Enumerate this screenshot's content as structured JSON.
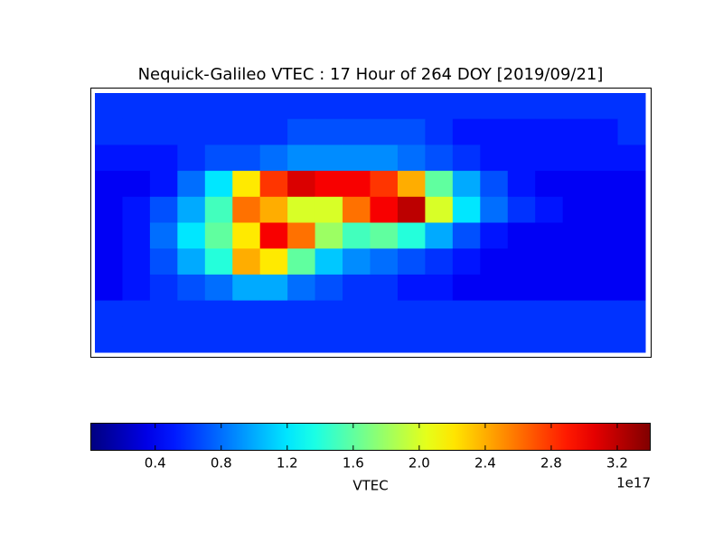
{
  "chart_data": {
    "type": "heatmap",
    "title": "Nequick-Galileo VTEC : 17 Hour of 264 DOY [2019/09/21]",
    "colormap": "jet",
    "xlim": [
      -180,
      180
    ],
    "ylim": [
      90,
      -90
    ],
    "values": [
      [
        0.6,
        0.6,
        0.6,
        0.6,
        0.6,
        0.6,
        0.6,
        0.6,
        0.6,
        0.6,
        0.6,
        0.6,
        0.6,
        0.6,
        0.6,
        0.6,
        0.6,
        0.6,
        0.6,
        0.6
      ],
      [
        0.6,
        0.6,
        0.6,
        0.6,
        0.6,
        0.6,
        0.6,
        0.7,
        0.7,
        0.7,
        0.7,
        0.7,
        0.6,
        0.5,
        0.5,
        0.5,
        0.5,
        0.5,
        0.5,
        0.6
      ],
      [
        0.5,
        0.5,
        0.5,
        0.6,
        0.7,
        0.7,
        0.8,
        0.9,
        0.9,
        0.9,
        0.9,
        0.8,
        0.7,
        0.6,
        0.5,
        0.5,
        0.5,
        0.5,
        0.5,
        0.5
      ],
      [
        0.4,
        0.4,
        0.5,
        0.8,
        1.2,
        2.2,
        2.8,
        3.1,
        3.0,
        3.0,
        2.8,
        2.4,
        1.6,
        1.0,
        0.7,
        0.5,
        0.4,
        0.4,
        0.4,
        0.4
      ],
      [
        0.4,
        0.5,
        0.7,
        1.0,
        1.5,
        2.6,
        2.4,
        2.0,
        2.0,
        2.6,
        3.0,
        3.2,
        2.0,
        1.2,
        0.8,
        0.6,
        0.5,
        0.4,
        0.4,
        0.4
      ],
      [
        0.4,
        0.5,
        0.8,
        1.2,
        1.6,
        2.2,
        3.0,
        2.6,
        1.8,
        1.5,
        1.6,
        1.4,
        1.0,
        0.7,
        0.5,
        0.4,
        0.4,
        0.4,
        0.4,
        0.4
      ],
      [
        0.4,
        0.5,
        0.7,
        1.0,
        1.4,
        2.4,
        2.2,
        1.6,
        1.1,
        0.9,
        0.8,
        0.7,
        0.6,
        0.5,
        0.4,
        0.4,
        0.4,
        0.4,
        0.4,
        0.4
      ],
      [
        0.4,
        0.5,
        0.6,
        0.7,
        0.8,
        1.0,
        1.0,
        0.8,
        0.7,
        0.6,
        0.6,
        0.5,
        0.5,
        0.4,
        0.4,
        0.4,
        0.4,
        0.4,
        0.4,
        0.4
      ],
      [
        0.6,
        0.6,
        0.6,
        0.6,
        0.6,
        0.6,
        0.6,
        0.6,
        0.6,
        0.6,
        0.6,
        0.6,
        0.6,
        0.6,
        0.6,
        0.6,
        0.6,
        0.6,
        0.6,
        0.6
      ],
      [
        0.6,
        0.6,
        0.6,
        0.6,
        0.6,
        0.6,
        0.6,
        0.6,
        0.6,
        0.6,
        0.6,
        0.6,
        0.6,
        0.6,
        0.6,
        0.6,
        0.6,
        0.6,
        0.6,
        0.6
      ]
    ],
    "colorbar": {
      "label": "VTEC",
      "offset": "1e17",
      "lim": [
        0.01,
        3.4
      ],
      "ticks": [
        0.4,
        0.8,
        1.2,
        1.6,
        {
          "value": 2,
          "label": "2.0"
        },
        2.4,
        2.8,
        3.2
      ]
    }
  }
}
